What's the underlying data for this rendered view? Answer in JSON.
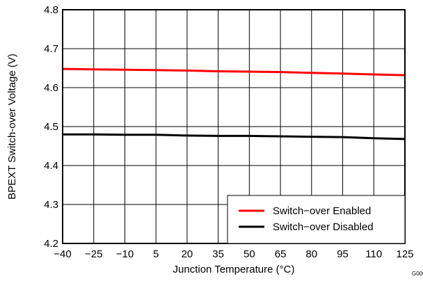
{
  "chart_data": {
    "type": "line",
    "title": "",
    "xlabel": "Junction Temperature (°C)",
    "ylabel": "BPEXT Switch-over Voltage (V)",
    "xlim": [
      -40,
      125
    ],
    "ylim": [
      4.2,
      4.8
    ],
    "xticks": [
      -40,
      -25,
      -10,
      5,
      20,
      35,
      50,
      65,
      80,
      95,
      110,
      125
    ],
    "yticks": [
      4.2,
      4.3,
      4.4,
      4.5,
      4.6,
      4.7,
      4.8
    ],
    "xtick_labels": [
      "−40",
      "−25",
      "−10",
      "5",
      "20",
      "35",
      "50",
      "65",
      "80",
      "95",
      "110",
      "125"
    ],
    "ytick_labels": [
      "4.2",
      "4.3",
      "4.4",
      "4.5",
      "4.6",
      "4.7",
      "4.8"
    ],
    "grid": true,
    "legend_position": "bottom-right",
    "series": [
      {
        "name": "Switch−over Enabled",
        "color": "#ff0000",
        "x": [
          -40,
          -25,
          -10,
          5,
          20,
          35,
          50,
          65,
          80,
          95,
          110,
          125
        ],
        "y": [
          4.648,
          4.647,
          4.646,
          4.645,
          4.644,
          4.642,
          4.641,
          4.64,
          4.638,
          4.636,
          4.634,
          4.632
        ]
      },
      {
        "name": "Switch−over Disabled",
        "color": "#000000",
        "x": [
          -40,
          -25,
          -10,
          5,
          20,
          35,
          50,
          65,
          80,
          95,
          110,
          125
        ],
        "y": [
          4.48,
          4.48,
          4.479,
          4.479,
          4.477,
          4.476,
          4.476,
          4.475,
          4.474,
          4.473,
          4.47,
          4.468
        ]
      }
    ],
    "corner_label": "G000"
  }
}
